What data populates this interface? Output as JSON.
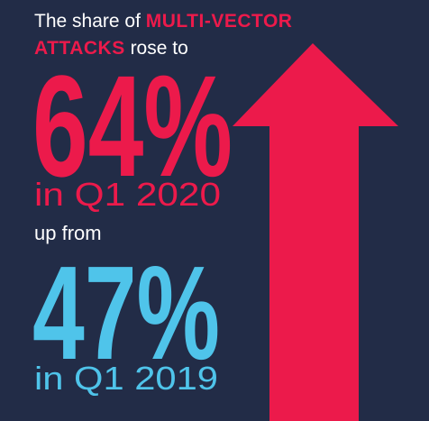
{
  "headline": {
    "parts": [
      "The share of",
      "MULTI-VECTOR",
      "ATTACKS",
      "rose to"
    ]
  },
  "current": {
    "value": "64%",
    "period": "in Q1 2020"
  },
  "connector": "up from",
  "previous": {
    "value": "47%",
    "period": "in Q1 2019"
  }
}
